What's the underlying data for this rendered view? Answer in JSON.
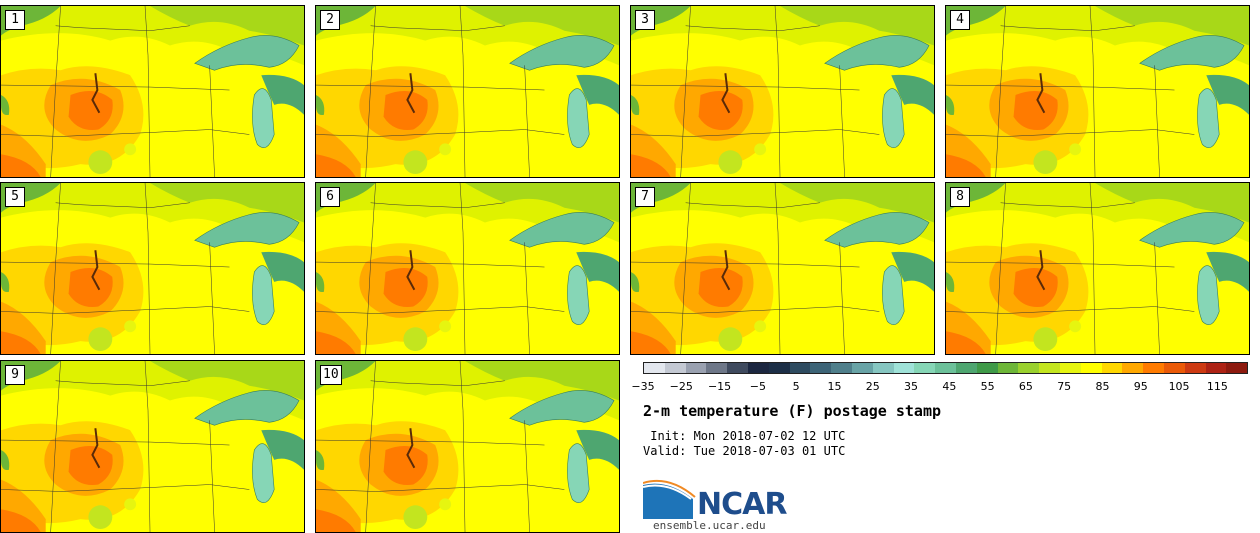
{
  "panels": [
    "1",
    "2",
    "3",
    "4",
    "5",
    "6",
    "7",
    "8",
    "9",
    "10"
  ],
  "colorbar": {
    "colors": [
      "#e3e7ee",
      "#c4c9d3",
      "#9aa1b0",
      "#6e7788",
      "#3f4a5e",
      "#1c2740",
      "#1d2f47",
      "#2e4b60",
      "#3d6477",
      "#4f7f8b",
      "#68a3a6",
      "#86c6c1",
      "#9fe2d8",
      "#86d6b6",
      "#6cc19a",
      "#4ea670",
      "#3f9a48",
      "#6db638",
      "#9ad12e",
      "#c3e51f",
      "#e6f510",
      "#ffff00",
      "#ffd700",
      "#ffa800",
      "#ff7b00",
      "#ea5a08",
      "#cd3a12",
      "#ad2214",
      "#8d1a0f"
    ],
    "tick_labels": [
      "−35",
      "−25",
      "−15",
      "−5",
      "5",
      "15",
      "25",
      "35",
      "45",
      "55",
      "65",
      "75",
      "85",
      "95",
      "105",
      "115"
    ]
  },
  "title": "2-m temperature (F) postage stamp",
  "init_text": " Init: Mon 2018-07-02 12 UTC",
  "valid_text": "Valid: Tue 2018-07-03 01 UTC",
  "logo_text": "NCAR",
  "site": "ensemble.ucar.edu"
}
